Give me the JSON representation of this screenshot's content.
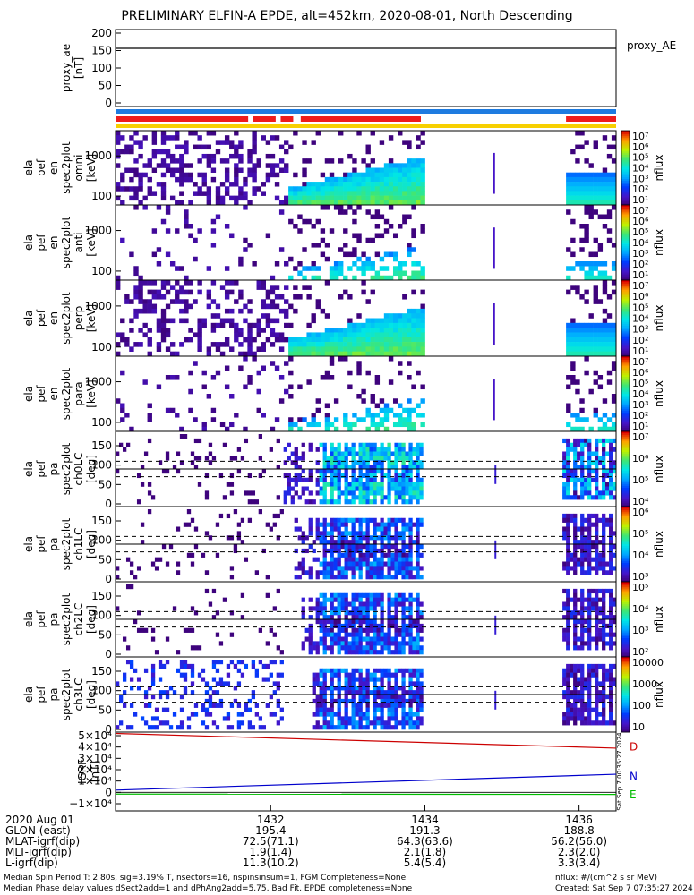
{
  "title": "PRELIMINARY ELFIN-A EPDE, alt=452km, 2020-08-01, North Descending",
  "chart_data": {
    "type": "heatmap",
    "panels": [
      {
        "name": "proxy_ae",
        "kind": "line",
        "ylabel_lines": [
          "proxy_ae",
          "[nT]"
        ],
        "yticks": [
          "200",
          "150",
          "100",
          "50",
          "0"
        ],
        "yrange": [
          0,
          200
        ],
        "value": 155,
        "legend_label": "proxy_AE"
      },
      {
        "name": "spec-omni",
        "kind": "energy",
        "ylabel_lines": [
          "ela",
          "pef",
          "en",
          "spec2plot",
          "omni",
          "[keV]"
        ],
        "yticks": [
          "1000",
          "100"
        ],
        "cbar_ticks": [
          "10⁷",
          "10⁶",
          "10⁵",
          "10⁴",
          "10³",
          "10²",
          "10¹"
        ],
        "cbar_label": "nflux"
      },
      {
        "name": "spec-anti",
        "kind": "energy",
        "ylabel_lines": [
          "ela",
          "pef",
          "en",
          "spec2plot",
          "anti",
          "[keV]"
        ],
        "yticks": [
          "1000",
          "100"
        ],
        "cbar_ticks": [
          "10⁷",
          "10⁶",
          "10⁵",
          "10⁴",
          "10³",
          "10²",
          "10¹"
        ],
        "cbar_label": "nflux"
      },
      {
        "name": "spec-perp",
        "kind": "energy",
        "ylabel_lines": [
          "ela",
          "pef",
          "en",
          "spec2plot",
          "perp",
          "[keV]"
        ],
        "yticks": [
          "1000",
          "100"
        ],
        "cbar_ticks": [
          "10⁷",
          "10⁶",
          "10⁵",
          "10⁴",
          "10³",
          "10²",
          "10¹"
        ],
        "cbar_label": "nflux"
      },
      {
        "name": "spec-para",
        "kind": "energy",
        "ylabel_lines": [
          "ela",
          "pef",
          "en",
          "spec2plot",
          "para",
          "[keV]"
        ],
        "yticks": [
          "1000",
          "100"
        ],
        "cbar_ticks": [
          "10⁷",
          "10⁶",
          "10⁵",
          "10⁴",
          "10³",
          "10²",
          "10¹"
        ],
        "cbar_label": "nflux"
      },
      {
        "name": "pa-ch0",
        "kind": "pitch",
        "ylabel_lines": [
          "ela",
          "pef",
          "pa",
          "spec2plot",
          "ch0LC",
          "[deg]"
        ],
        "yticks": [
          "150",
          "100",
          "50",
          "0"
        ],
        "cbar_ticks": [
          "10⁷",
          "10⁶",
          "10⁵",
          "10⁴"
        ],
        "cbar_label": "nflux"
      },
      {
        "name": "pa-ch1",
        "kind": "pitch",
        "ylabel_lines": [
          "ela",
          "pef",
          "pa",
          "spec2plot",
          "ch1LC",
          "[deg]"
        ],
        "yticks": [
          "150",
          "100",
          "50",
          "0"
        ],
        "cbar_ticks": [
          "10⁶",
          "10⁵",
          "10⁴",
          "10³"
        ],
        "cbar_label": "nflux"
      },
      {
        "name": "pa-ch2",
        "kind": "pitch",
        "ylabel_lines": [
          "ela",
          "pef",
          "pa",
          "spec2plot",
          "ch2LC",
          "[deg]"
        ],
        "yticks": [
          "150",
          "100",
          "50",
          "0"
        ],
        "cbar_ticks": [
          "10⁵",
          "10⁴",
          "10³",
          "10²"
        ],
        "cbar_label": "nflux"
      },
      {
        "name": "pa-ch3",
        "kind": "pitch",
        "ylabel_lines": [
          "ela",
          "pef",
          "pa",
          "spec2plot",
          "ch3LC",
          "[deg]"
        ],
        "yticks": [
          "150",
          "100",
          "50",
          "0"
        ],
        "cbar_ticks": [
          "10000",
          "1000",
          "100",
          "10"
        ],
        "cbar_label": "nflux"
      },
      {
        "name": "igrf",
        "kind": "field",
        "ylabel_lines": [
          "IGRF",
          "[nT]"
        ],
        "yticks": [
          "5×10⁴",
          "4×10⁴",
          "3×10⁴",
          "2×10⁴",
          "1×10⁴",
          "0",
          "−1×10⁴"
        ],
        "components": [
          "D",
          "N",
          "E"
        ],
        "component_colors": [
          "#cc0000",
          "#0000cc",
          "#00bb00"
        ]
      }
    ],
    "x_ticks": [
      "1432",
      "1434",
      "1436"
    ],
    "status_bar_colors": {
      "top": "#1e7be0",
      "red": "#ee1c1c",
      "yellow": "#f7d000"
    },
    "ephemeris": [
      {
        "label": "2020 Aug 01",
        "values": [
          "1432",
          "1434",
          "1436"
        ]
      },
      {
        "label": "GLON (east)",
        "values": [
          "195.4",
          "191.3",
          "188.8"
        ]
      },
      {
        "label": "MLAT-igrf(dip)",
        "values": [
          "72.5(71.1)",
          "64.3(63.6)",
          "56.2(56.0)"
        ]
      },
      {
        "label": "MLT-igrf(dip)",
        "values": [
          "1.9(1.4)",
          "2.1(1.8)",
          "2.3(2.0)"
        ]
      },
      {
        "label": "L-igrf(dip)",
        "values": [
          "11.3(10.2)",
          "5.4(5.4)",
          "3.3(3.4)"
        ]
      }
    ],
    "side_timestamp": "Sat Sep  7 00:35:27 2024"
  },
  "footer": {
    "line1": "Median Spin Period T: 2.80s, sig=3.19% T, nsectors=16, nspinsinsum=1, FGM Completeness=None",
    "line2": "Median Phase delay values dSect2add=1 and dPhAng2add=5.75, Bad Fit, EPDE completeness=None",
    "right1": "nflux: #/(cm^2 s sr MeV)",
    "right2": "Created: Sat Sep  7 07:35:27 2024"
  }
}
